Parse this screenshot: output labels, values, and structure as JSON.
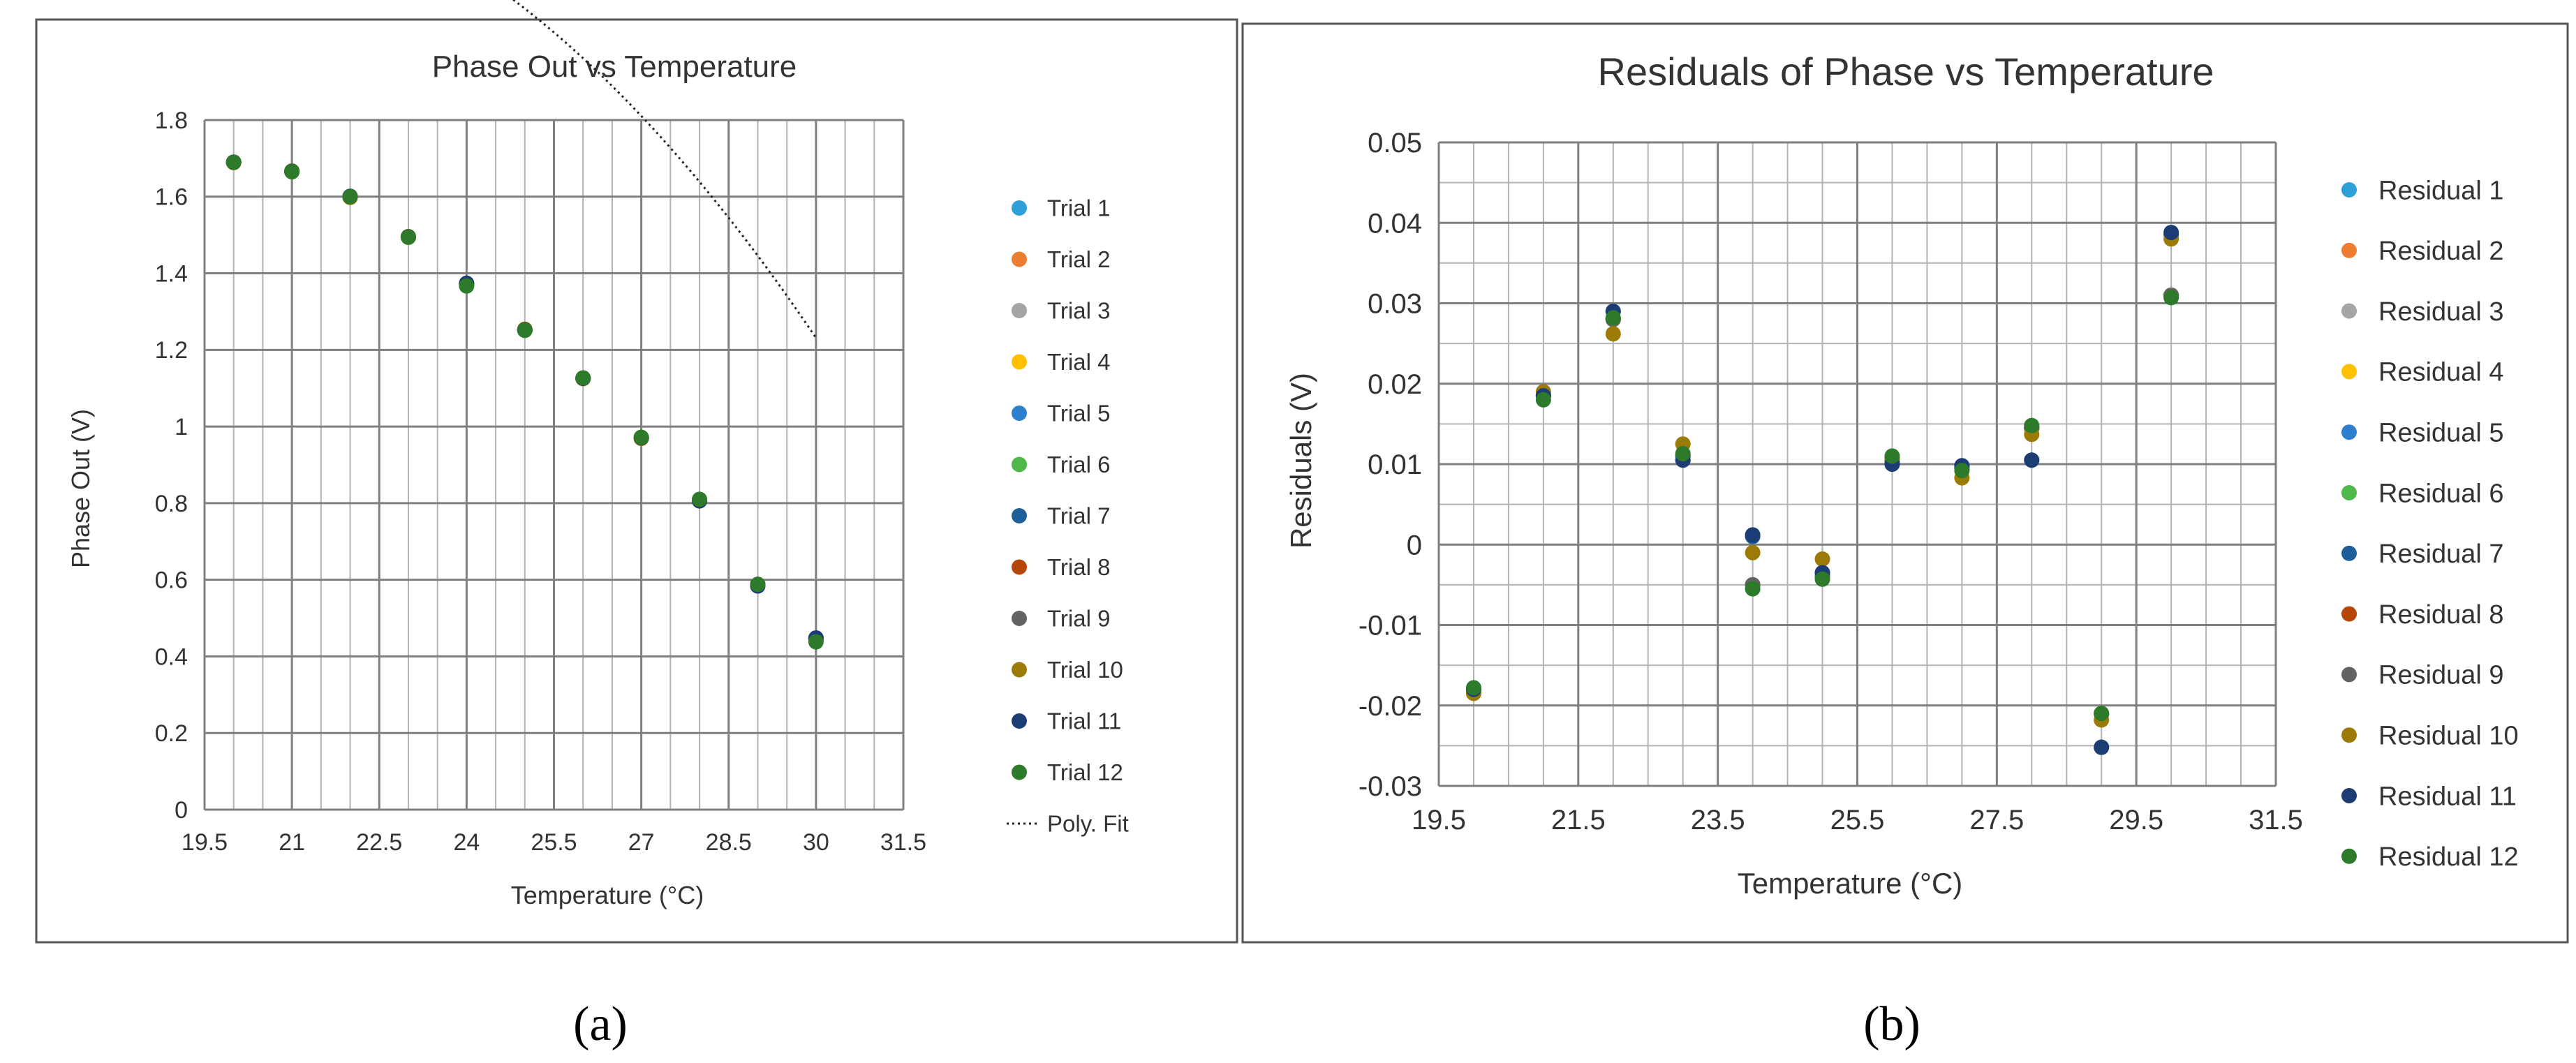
{
  "colors": {
    "trial": [
      "#2e9fd8",
      "#ed7d31",
      "#a5a5a5",
      "#ffc000",
      "#2f7fcf",
      "#4fb84a",
      "#1f5f99",
      "#b5470b",
      "#636363",
      "#9c7a07",
      "#1c3d74",
      "#2e7a2b"
    ],
    "fit": "#222222",
    "grid_minor": "#b3b3b3",
    "grid_major": "#7f7f7f",
    "frame": "#404040"
  },
  "panel_labels": [
    "(a)",
    "(b)"
  ],
  "chart_data": [
    {
      "type": "scatter",
      "title": "Phase Out vs Temperature",
      "xlabel": "Temperature (°C)",
      "ylabel": "Phase Out (V)",
      "xlim": [
        19.5,
        31.5
      ],
      "ylim": [
        0,
        1.8
      ],
      "x_ticks": [
        "19.5",
        "21",
        "22.5",
        "24",
        "25.5",
        "27",
        "28.5",
        "30",
        "31.5"
      ],
      "y_ticks": [
        "0",
        "0.2",
        "0.4",
        "0.6",
        "0.8",
        "1",
        "1.2",
        "1.4",
        "1.6",
        "1.8"
      ],
      "x": [
        20,
        21,
        22,
        23,
        24,
        25,
        26,
        27,
        28,
        29,
        30
      ],
      "series": [
        {
          "name": "Trial 1",
          "values": [
            1.69,
            1.666,
            1.6,
            1.495,
            1.372,
            1.252,
            1.126,
            0.971,
            0.807,
            0.588,
            0.446
          ]
        },
        {
          "name": "Trial 2",
          "values": [
            1.69,
            1.666,
            1.6,
            1.495,
            1.372,
            1.252,
            1.126,
            0.971,
            0.807,
            0.588,
            0.446
          ]
        },
        {
          "name": "Trial 3",
          "values": [
            1.69,
            1.666,
            1.6,
            1.495,
            1.372,
            1.252,
            1.126,
            0.971,
            0.807,
            0.588,
            0.446
          ]
        },
        {
          "name": "Trial 4",
          "values": [
            1.69,
            1.666,
            1.6,
            1.495,
            1.372,
            1.252,
            1.126,
            0.971,
            0.807,
            0.588,
            0.446
          ]
        },
        {
          "name": "Trial 5",
          "values": [
            1.69,
            1.666,
            1.6,
            1.495,
            1.372,
            1.252,
            1.126,
            0.971,
            0.807,
            0.588,
            0.446
          ]
        },
        {
          "name": "Trial 6",
          "values": [
            1.69,
            1.666,
            1.6,
            1.495,
            1.372,
            1.252,
            1.126,
            0.971,
            0.807,
            0.588,
            0.446
          ]
        },
        {
          "name": "Trial 7",
          "values": [
            1.69,
            1.666,
            1.601,
            1.495,
            1.373,
            1.252,
            1.126,
            0.971,
            0.806,
            0.584,
            0.448
          ]
        },
        {
          "name": "Trial 8",
          "values": [
            1.69,
            1.666,
            1.6,
            1.495,
            1.372,
            1.252,
            1.126,
            0.971,
            0.807,
            0.588,
            0.446
          ]
        },
        {
          "name": "Trial 9",
          "values": [
            1.69,
            1.666,
            1.6,
            1.495,
            1.372,
            1.252,
            1.126,
            0.971,
            0.807,
            0.588,
            0.446
          ]
        },
        {
          "name": "Trial 10",
          "values": [
            1.689,
            1.667,
            1.598,
            1.496,
            1.372,
            1.254,
            1.125,
            0.969,
            0.809,
            0.587,
            0.446
          ]
        },
        {
          "name": "Trial 11",
          "values": [
            1.69,
            1.666,
            1.601,
            1.495,
            1.374,
            1.252,
            1.126,
            0.971,
            0.806,
            0.584,
            0.448
          ]
        },
        {
          "name": "Trial 12",
          "values": [
            1.69,
            1.665,
            1.6,
            1.494,
            1.367,
            1.251,
            1.127,
            0.972,
            0.81,
            0.588,
            0.438
          ]
        }
      ],
      "fit": {
        "name": "Poly. Fit",
        "coeffs": [
          -1.5766,
          0.4122,
          -0.01062
        ]
      },
      "legend_position": "right"
    },
    {
      "type": "scatter",
      "title": "Residuals of Phase vs Temperature",
      "xlabel": "Temperature (°C)",
      "ylabel": "Residuals (V)",
      "xlim": [
        19.5,
        31.5
      ],
      "ylim": [
        -0.03,
        0.05
      ],
      "x_ticks": [
        "19.5",
        "21.5",
        "23.5",
        "25.5",
        "27.5",
        "29.5",
        "31.5"
      ],
      "y_ticks": [
        "-0.03",
        "-0.02",
        "-0.01",
        "0",
        "0.01",
        "0.02",
        "0.03",
        "0.04",
        "0.05"
      ],
      "x": [
        20,
        21,
        22,
        23,
        24,
        25,
        26,
        27,
        28,
        29,
        30
      ],
      "series": [
        {
          "name": "Residual 1",
          "values": [
            -0.018,
            0.0185,
            0.028,
            0.011,
            -0.005,
            -0.004,
            0.0105,
            0.0095,
            0.0145,
            -0.021,
            0.031
          ]
        },
        {
          "name": "Residual 2",
          "values": [
            -0.018,
            0.0185,
            0.028,
            0.011,
            -0.005,
            -0.004,
            0.0105,
            0.0095,
            0.0145,
            -0.021,
            0.031
          ]
        },
        {
          "name": "Residual 3",
          "values": [
            -0.018,
            0.0185,
            0.028,
            0.011,
            -0.005,
            -0.004,
            0.0105,
            0.0095,
            0.0145,
            -0.021,
            0.031
          ]
        },
        {
          "name": "Residual 4",
          "values": [
            -0.018,
            0.0185,
            0.028,
            0.011,
            -0.005,
            -0.004,
            0.0105,
            0.0095,
            0.0145,
            -0.021,
            0.031
          ]
        },
        {
          "name": "Residual 5",
          "values": [
            -0.018,
            0.0185,
            0.028,
            0.011,
            -0.005,
            -0.004,
            0.0105,
            0.0095,
            0.0145,
            -0.021,
            0.031
          ]
        },
        {
          "name": "Residual 6",
          "values": [
            -0.018,
            0.0185,
            0.028,
            0.011,
            -0.005,
            -0.004,
            0.0105,
            0.0095,
            0.0145,
            -0.021,
            0.031
          ]
        },
        {
          "name": "Residual 7",
          "values": [
            -0.018,
            0.0185,
            0.029,
            0.0105,
            0.001,
            -0.0035,
            0.01,
            0.0098,
            0.0105,
            -0.0252,
            0.0385
          ]
        },
        {
          "name": "Residual 8",
          "values": [
            -0.018,
            0.0185,
            0.028,
            0.011,
            -0.005,
            -0.004,
            0.0105,
            0.0095,
            0.0145,
            -0.021,
            0.031
          ]
        },
        {
          "name": "Residual 9",
          "values": [
            -0.018,
            0.0185,
            0.028,
            0.011,
            -0.005,
            -0.004,
            0.0105,
            0.0095,
            0.0145,
            -0.021,
            0.031
          ]
        },
        {
          "name": "Residual 10",
          "values": [
            -0.0185,
            0.019,
            0.0262,
            0.0125,
            -0.001,
            -0.0018,
            0.0108,
            0.0083,
            0.0137,
            -0.0218,
            0.038
          ]
        },
        {
          "name": "Residual 11",
          "values": [
            -0.018,
            0.0185,
            0.029,
            0.0105,
            0.0012,
            -0.0035,
            0.01,
            0.0098,
            0.0105,
            -0.0252,
            0.0388
          ]
        },
        {
          "name": "Residual 12",
          "values": [
            -0.0178,
            0.018,
            0.0282,
            0.0113,
            -0.0055,
            -0.0043,
            0.011,
            0.0092,
            0.0148,
            -0.021,
            0.0307
          ]
        }
      ],
      "legend_position": "right"
    }
  ]
}
